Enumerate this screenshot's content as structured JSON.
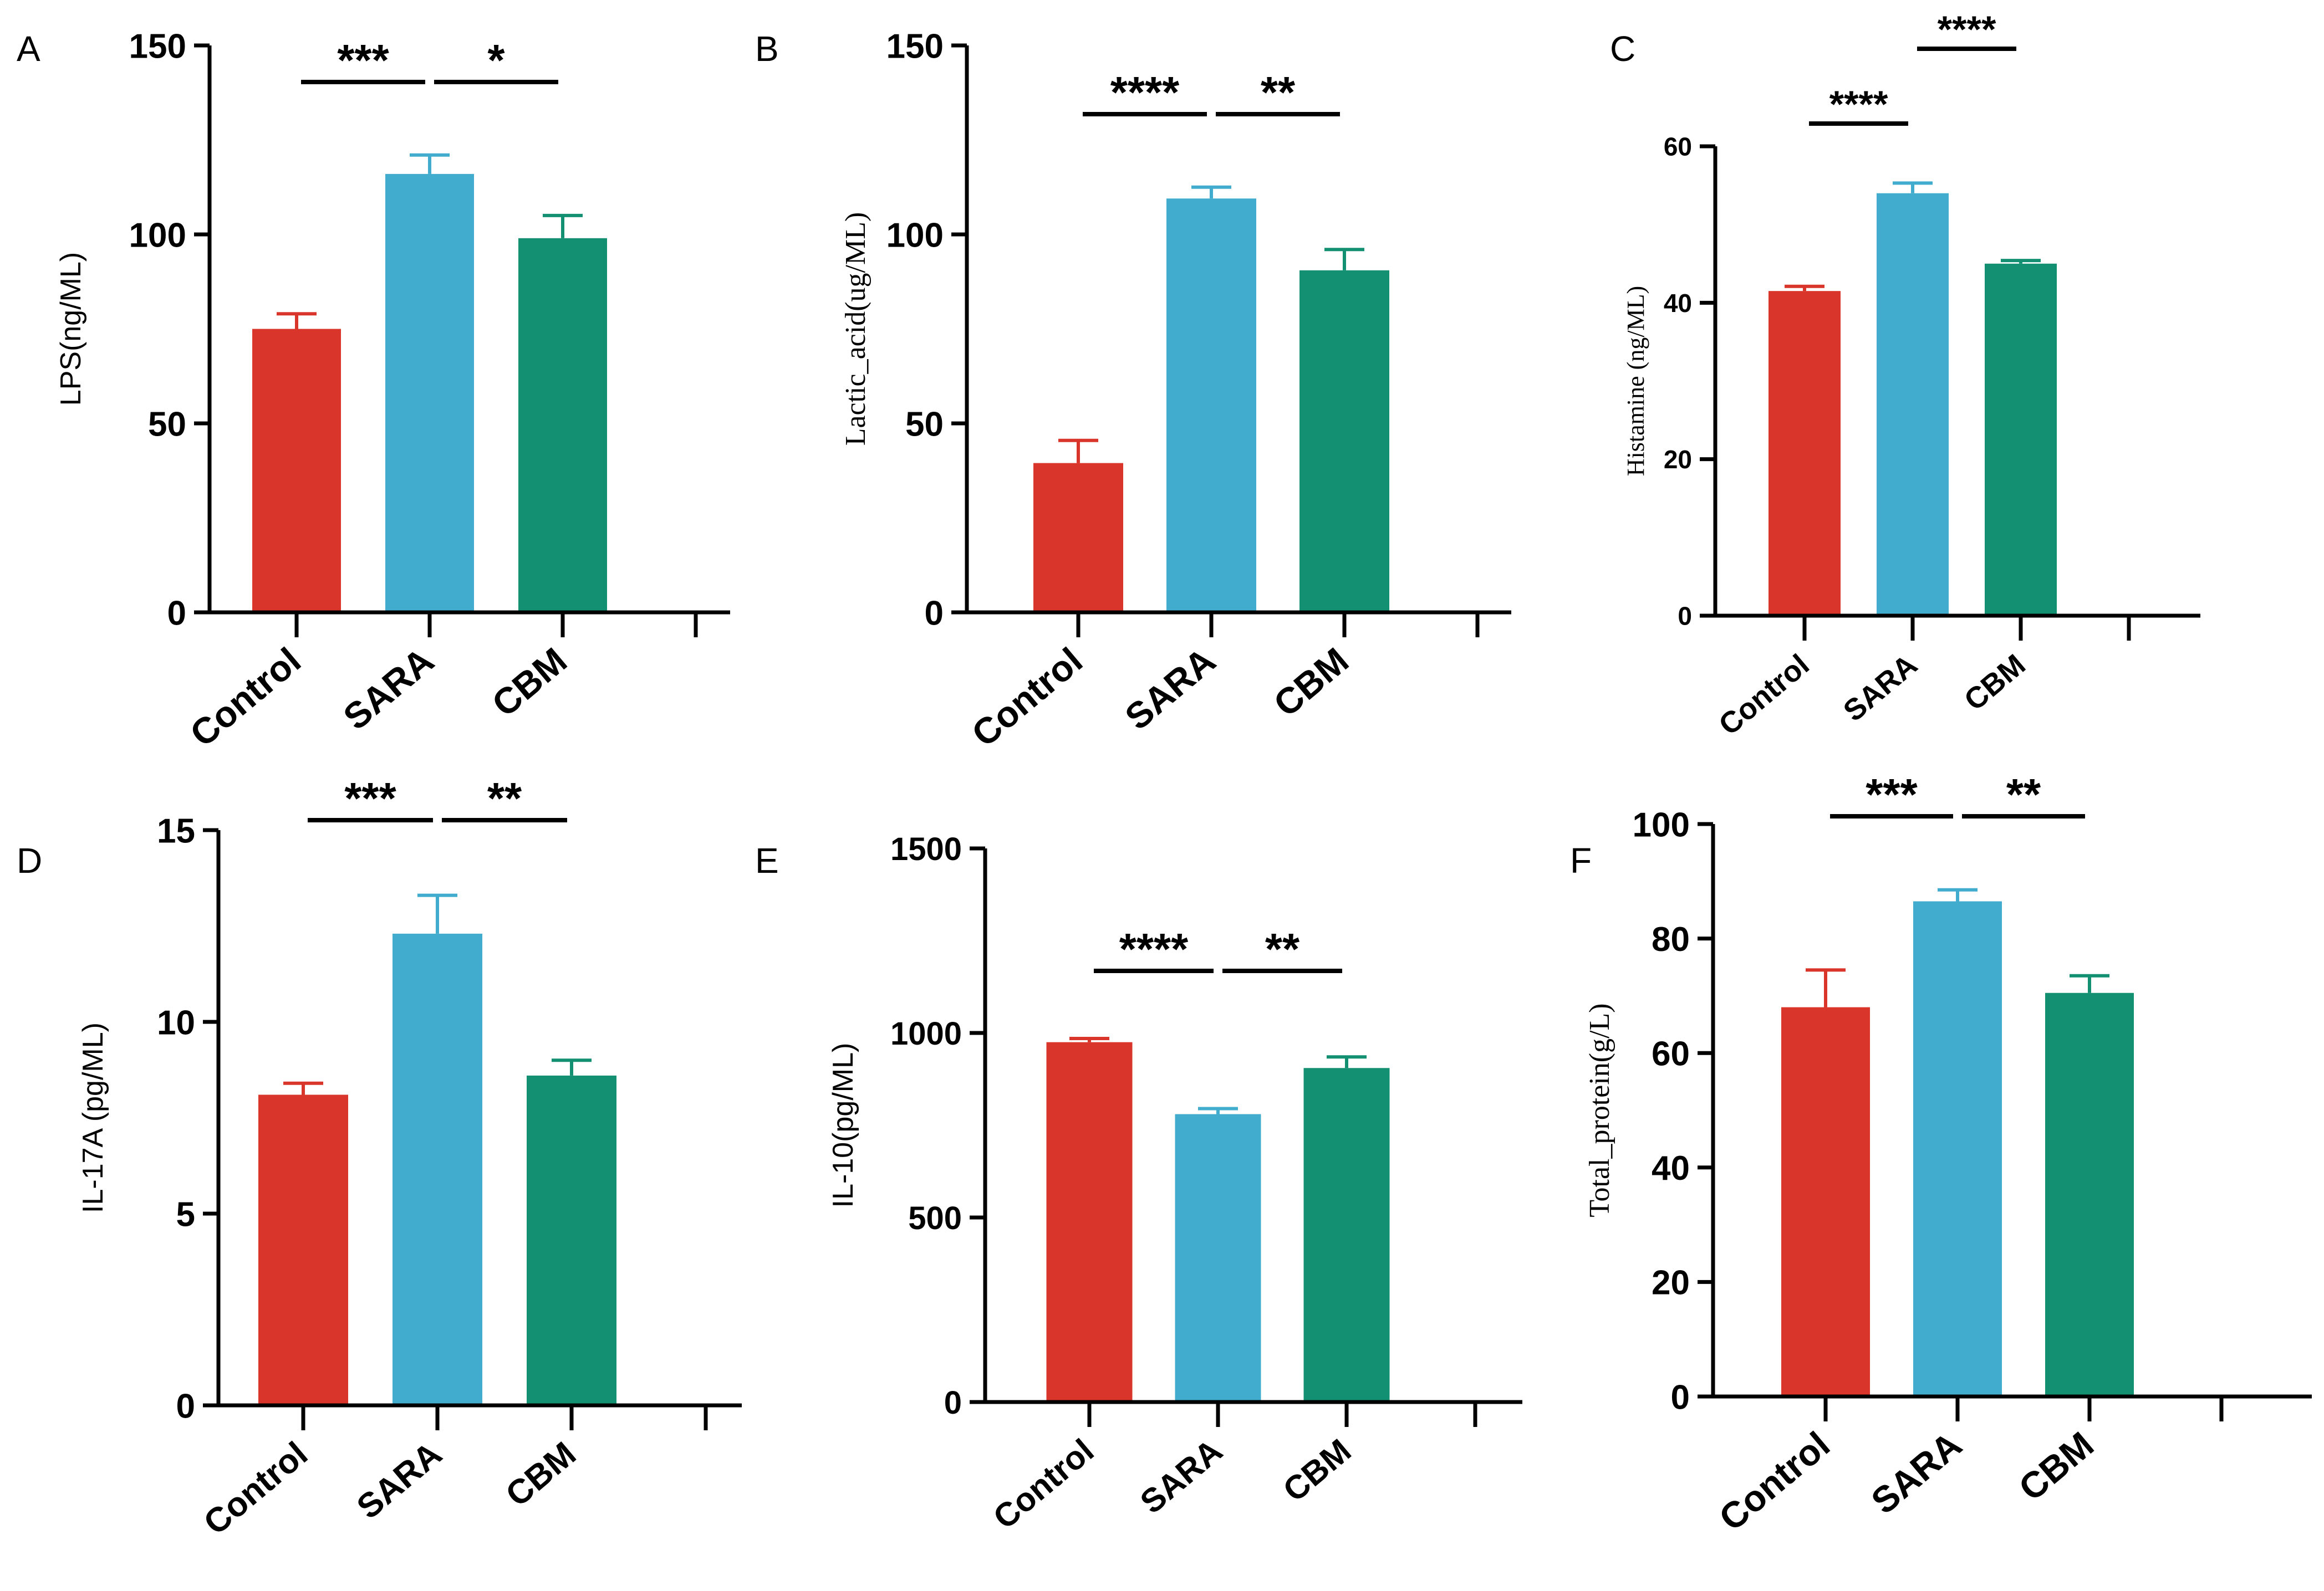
{
  "colors": {
    "Control": "#d9352a",
    "SARA": "#42acce",
    "CBM": "#138f72",
    "axis": "#000000"
  },
  "chart_data": [
    {
      "panel": "A",
      "type": "bar",
      "ylabel": "LPS(ng/ML)",
      "ylim": [
        0,
        150
      ],
      "yticks": [
        0,
        50,
        100,
        150
      ],
      "ytick_labels": [
        "0",
        "50",
        "100",
        "150"
      ],
      "categories": [
        "Control",
        "SARA",
        "CBM"
      ],
      "values": [
        75,
        116,
        99
      ],
      "errors": [
        4,
        5,
        6
      ],
      "significance": [
        {
          "from": 0,
          "to": 1,
          "label": "***"
        },
        {
          "from": 1,
          "to": 2,
          "label": "*"
        }
      ]
    },
    {
      "panel": "B",
      "type": "bar",
      "ylabel": "Lactic_acid(ug/ML)",
      "ylim": [
        0,
        150
      ],
      "yticks": [
        0,
        50,
        100,
        150
      ],
      "ytick_labels": [
        "0",
        "50",
        "100",
        "150"
      ],
      "categories": [
        "Control",
        "SARA",
        "CBM"
      ],
      "values": [
        39.5,
        109.5,
        90.5
      ],
      "errors": [
        6,
        3,
        5.5
      ],
      "significance": [
        {
          "from": 0,
          "to": 1,
          "label": "****"
        },
        {
          "from": 1,
          "to": 2,
          "label": "**"
        }
      ]
    },
    {
      "panel": "C",
      "type": "bar",
      "ylabel": "Histamine (ng/ML)",
      "ylim": [
        0,
        60
      ],
      "yticks": [
        0,
        20,
        40,
        60
      ],
      "ytick_labels": [
        "0",
        "20",
        "40",
        "60"
      ],
      "categories": [
        "Control",
        "SARA",
        "CBM"
      ],
      "values": [
        41.5,
        54,
        45
      ],
      "errors": [
        0.6,
        1.3,
        0.4
      ],
      "significance": [
        {
          "from": 0,
          "to": 1,
          "label": "****"
        },
        {
          "from": 1,
          "to": 2,
          "label": "****"
        }
      ]
    },
    {
      "panel": "D",
      "type": "bar",
      "ylabel": "IL-17A (pg/ML)",
      "ylim": [
        0,
        15
      ],
      "yticks": [
        0,
        5,
        10,
        15
      ],
      "ytick_labels": [
        "0",
        "5",
        "10",
        "15"
      ],
      "categories": [
        "Control",
        "SARA",
        "CBM"
      ],
      "values": [
        8.1,
        12.3,
        8.6
      ],
      "errors": [
        0.3,
        1.0,
        0.4
      ],
      "significance": [
        {
          "from": 0,
          "to": 1,
          "label": "***"
        },
        {
          "from": 1,
          "to": 2,
          "label": "**"
        }
      ]
    },
    {
      "panel": "E",
      "type": "bar",
      "ylabel": "IL-10(pg/ML)",
      "ylim": [
        0,
        1500
      ],
      "yticks": [
        0,
        500,
        1000,
        1500
      ],
      "ytick_labels": [
        "0",
        "500",
        "1000",
        "1500"
      ],
      "categories": [
        "Control",
        "SARA",
        "CBM"
      ],
      "values": [
        975,
        780,
        905
      ],
      "errors": [
        10,
        15,
        30
      ],
      "significance": [
        {
          "from": 0,
          "to": 1,
          "label": "****"
        },
        {
          "from": 1,
          "to": 2,
          "label": "**"
        }
      ]
    },
    {
      "panel": "F",
      "type": "bar",
      "ylabel": "Total_protein(g/L)",
      "ylim": [
        0,
        100
      ],
      "yticks": [
        0,
        20,
        40,
        60,
        80,
        100
      ],
      "ytick_labels": [
        "0",
        "20",
        "40",
        "60",
        "80",
        "100"
      ],
      "categories": [
        "Control",
        "SARA",
        "CBM"
      ],
      "values": [
        68,
        86.5,
        70.5
      ],
      "errors": [
        6.5,
        2,
        3
      ],
      "significance": [
        {
          "from": 0,
          "to": 1,
          "label": "***"
        },
        {
          "from": 1,
          "to": 2,
          "label": "**"
        }
      ]
    }
  ]
}
